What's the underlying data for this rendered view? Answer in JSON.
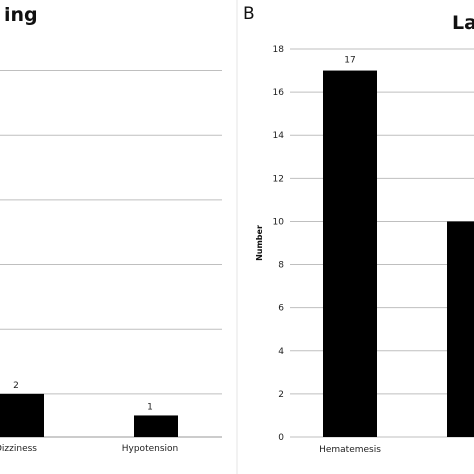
{
  "panels": {
    "left": {
      "title_fragment": "ing"
    },
    "right": {
      "panel_letter": "B",
      "title_fragment": "Lat"
    }
  },
  "chart_data": [
    {
      "type": "bar",
      "title": "ing",
      "categories": [
        "Dizziness",
        "Hypotension"
      ],
      "category_labels_visible": [
        "Dizziness",
        "Hypotension"
      ],
      "values": [
        2,
        1
      ],
      "data_labels": [
        "2",
        "1"
      ],
      "ylim": [
        0,
        18
      ],
      "gridlines": true,
      "bar_color": "#000000",
      "grid_color": "#bfbfbf"
    },
    {
      "type": "bar",
      "panel_letter": "B",
      "title": "Lat",
      "ylabel": "Number",
      "categories": [
        "Hematemesis",
        ""
      ],
      "values": [
        17,
        10
      ],
      "data_labels": [
        "17",
        ""
      ],
      "ylim": [
        0,
        18
      ],
      "yticks": [
        0,
        2,
        4,
        6,
        8,
        10,
        12,
        14,
        16,
        18
      ],
      "gridlines": true,
      "bar_color": "#000000",
      "grid_color": "#bfbfbf"
    }
  ]
}
